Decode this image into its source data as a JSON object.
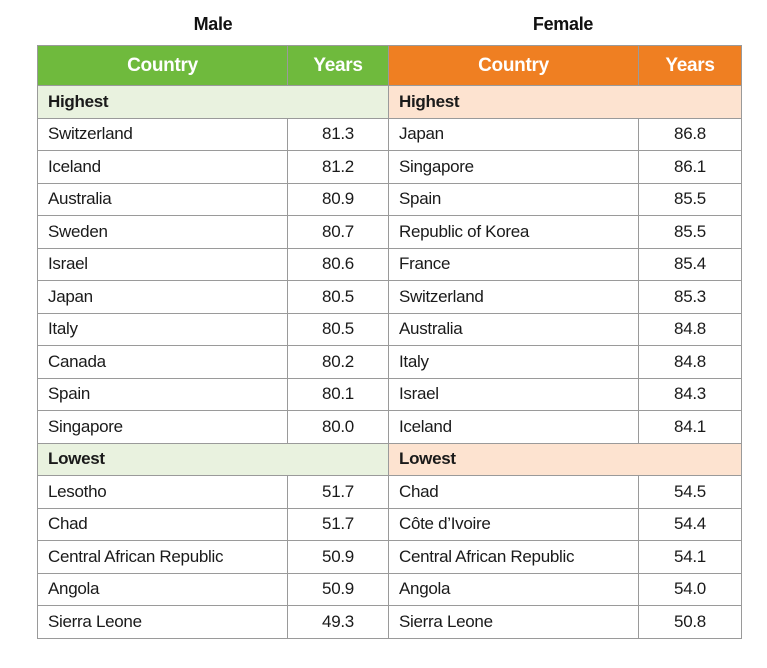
{
  "titles": {
    "male": "Male",
    "female": "Female"
  },
  "table": {
    "header": [
      "Country",
      "Years",
      "Country",
      "Years"
    ],
    "sections": [
      {
        "male_label": "Highest",
        "female_label": "Highest",
        "rows": [
          [
            "Switzerland",
            "81.3",
            "Japan",
            "86.8"
          ],
          [
            "Iceland",
            "81.2",
            "Singapore",
            "86.1"
          ],
          [
            "Australia",
            "80.9",
            "Spain",
            "85.5"
          ],
          [
            "Sweden",
            "80.7",
            "Republic of Korea",
            "85.5"
          ],
          [
            "Israel",
            "80.6",
            "France",
            "85.4"
          ],
          [
            "Japan",
            "80.5",
            "Switzerland",
            "85.3"
          ],
          [
            "Italy",
            "80.5",
            "Australia",
            "84.8"
          ],
          [
            "Canada",
            "80.2",
            "Italy",
            "84.8"
          ],
          [
            "Spain",
            "80.1",
            "Israel",
            "84.3"
          ],
          [
            "Singapore",
            "80.0",
            "Iceland",
            "84.1"
          ]
        ]
      },
      {
        "male_label": "Lowest",
        "female_label": "Lowest",
        "rows": [
          [
            "Lesotho",
            "51.7",
            "Chad",
            "54.5"
          ],
          [
            "Chad",
            "51.7",
            "Côte d’Ivoire",
            "54.4"
          ],
          [
            "Central African Republic",
            "50.9",
            "Central African Republic",
            "54.1"
          ],
          [
            "Angola",
            "50.9",
            "Angola",
            "54.0"
          ],
          [
            "Sierra Leone",
            "49.3",
            "Sierra Leone",
            "50.8"
          ]
        ]
      }
    ]
  }
}
